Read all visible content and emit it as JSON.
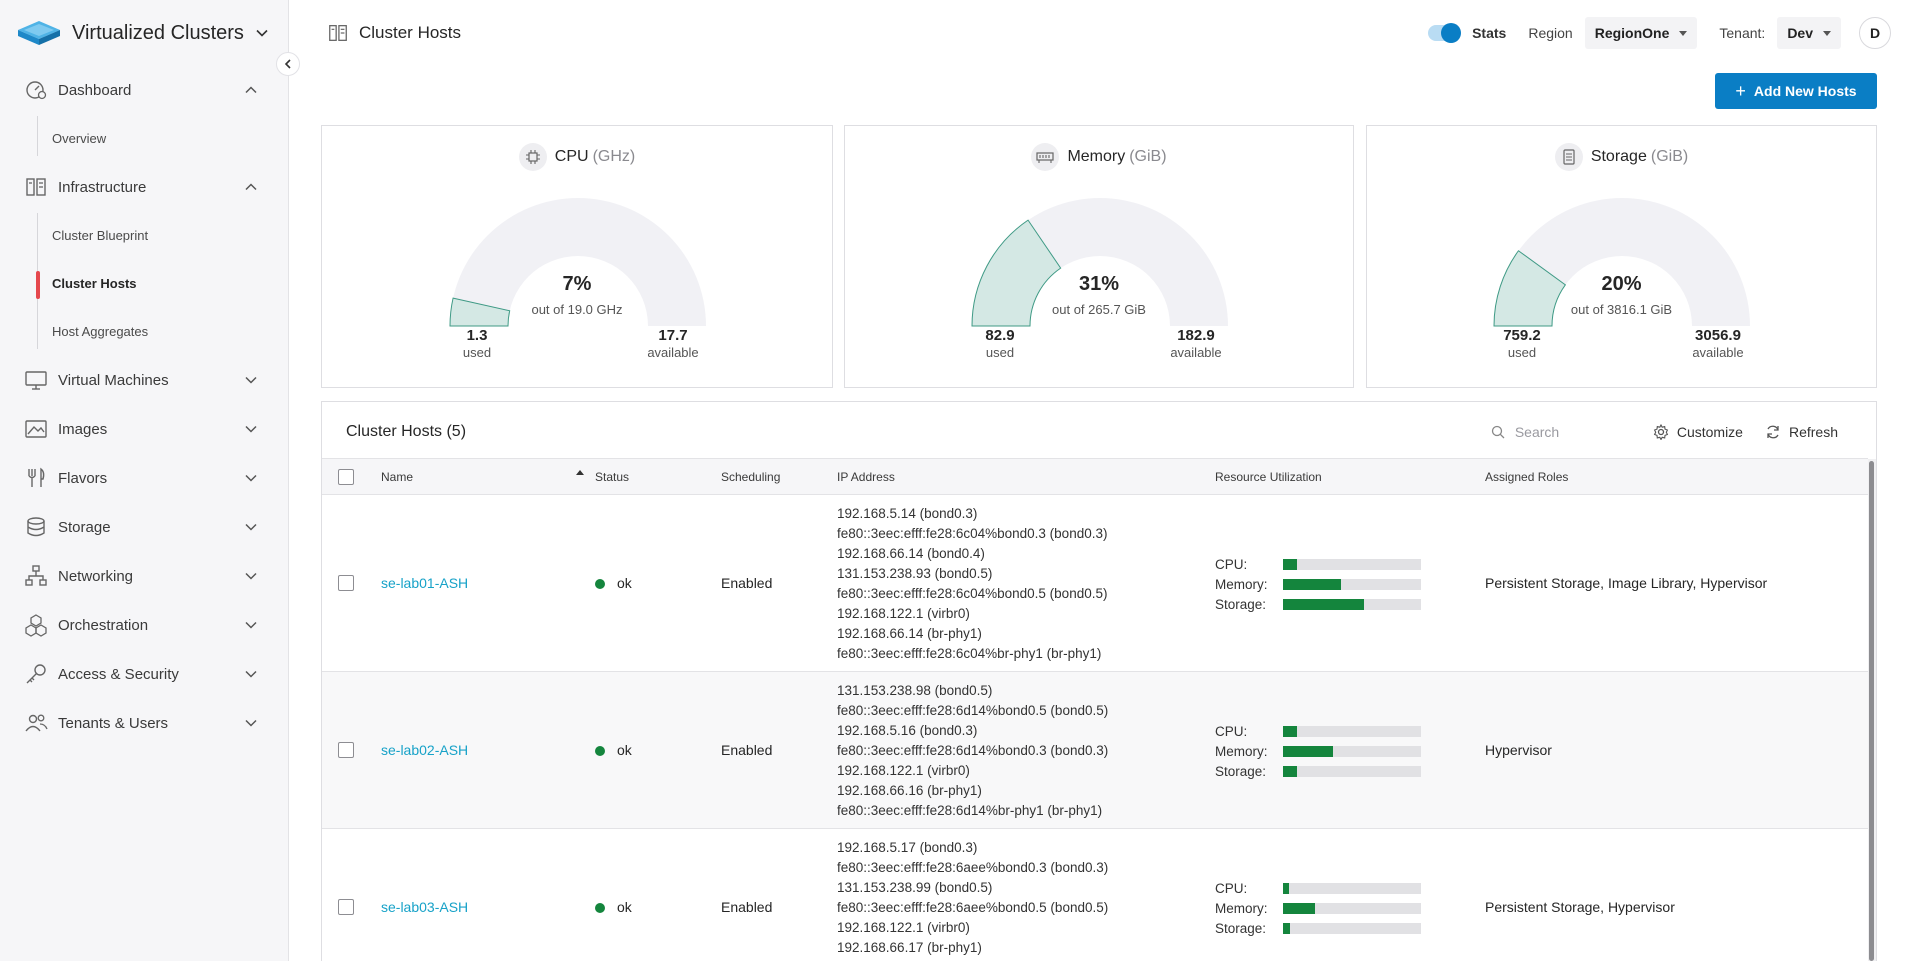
{
  "app": {
    "title": "Virtualized Clusters"
  },
  "sidebar": {
    "dashboard": {
      "label": "Dashboard",
      "sub": [
        "Overview"
      ]
    },
    "infrastructure": {
      "label": "Infrastructure",
      "sub": [
        "Cluster Blueprint",
        "Cluster Hosts",
        "Host Aggregates"
      ],
      "active": "Cluster Hosts"
    },
    "items": [
      {
        "label": "Virtual Machines",
        "icon": "monitor-icon"
      },
      {
        "label": "Images",
        "icon": "image-icon"
      },
      {
        "label": "Flavors",
        "icon": "utensils-icon"
      },
      {
        "label": "Storage",
        "icon": "database-icon"
      },
      {
        "label": "Networking",
        "icon": "network-icon"
      },
      {
        "label": "Orchestration",
        "icon": "cubes-icon"
      },
      {
        "label": "Access & Security",
        "icon": "key-icon"
      },
      {
        "label": "Tenants & Users",
        "icon": "users-icon"
      }
    ]
  },
  "header": {
    "page_title": "Cluster Hosts",
    "stats_label": "Stats",
    "stats_on": true,
    "region_label": "Region",
    "region_value": "RegionOne",
    "tenant_label": "Tenant:",
    "tenant_value": "Dev",
    "avatar_initial": "D"
  },
  "actions": {
    "add_hosts": "Add New Hosts"
  },
  "gauges": [
    {
      "name": "CPU",
      "unit": "(GHz)",
      "percent": "7%",
      "fraction": 0.07,
      "subtitle": "out of 19.0 GHz",
      "used": "1.3",
      "used_label": "used",
      "available": "17.7",
      "available_label": "available",
      "icon": "cpu-chip-icon"
    },
    {
      "name": "Memory",
      "unit": "(GiB)",
      "percent": "31%",
      "fraction": 0.31,
      "subtitle": "out of 265.7 GiB",
      "used": "82.9",
      "used_label": "used",
      "available": "182.9",
      "available_label": "available",
      "icon": "memory-icon"
    },
    {
      "name": "Storage",
      "unit": "(GiB)",
      "percent": "20%",
      "fraction": 0.2,
      "subtitle": "out of 3816.1 GiB",
      "used": "759.2",
      "used_label": "used",
      "available": "3056.9",
      "available_label": "available",
      "icon": "storage-icon"
    }
  ],
  "table": {
    "title": "Cluster Hosts (5)",
    "search_placeholder": "Search",
    "customize_label": "Customize",
    "refresh_label": "Refresh",
    "columns": [
      "Name",
      "Status",
      "Scheduling",
      "IP Address",
      "Resource Utilization",
      "Assigned Roles"
    ],
    "util_labels": [
      "CPU:",
      "Memory:",
      "Storage:"
    ],
    "rows": [
      {
        "name": "se-lab01-ASH",
        "status": "ok",
        "scheduling": "Enabled",
        "ips": [
          "192.168.5.14 (bond0.3)",
          "fe80::3eec:efff:fe28:6c04%bond0.3 (bond0.3)",
          "192.168.66.14 (bond0.4)",
          "131.153.238.93 (bond0.5)",
          "fe80::3eec:efff:fe28:6c04%bond0.5 (bond0.5)",
          "192.168.122.1 (virbr0)",
          "192.168.66.14 (br-phy1)",
          "fe80::3eec:efff:fe28:6c04%br-phy1 (br-phy1)"
        ],
        "util": {
          "cpu": 0.1,
          "memory": 0.42,
          "storage": 0.59
        },
        "roles": "Persistent Storage, Image Library, Hypervisor"
      },
      {
        "name": "se-lab02-ASH",
        "status": "ok",
        "scheduling": "Enabled",
        "ips": [
          "131.153.238.98 (bond0.5)",
          "fe80::3eec:efff:fe28:6d14%bond0.5 (bond0.5)",
          "192.168.5.16 (bond0.3)",
          "fe80::3eec:efff:fe28:6d14%bond0.3 (bond0.3)",
          "192.168.122.1 (virbr0)",
          "192.168.66.16 (br-phy1)",
          "fe80::3eec:efff:fe28:6d14%br-phy1 (br-phy1)"
        ],
        "util": {
          "cpu": 0.1,
          "memory": 0.36,
          "storage": 0.1
        },
        "roles": "Hypervisor"
      },
      {
        "name": "se-lab03-ASH",
        "status": "ok",
        "scheduling": "Enabled",
        "ips": [
          "192.168.5.17 (bond0.3)",
          "fe80::3eec:efff:fe28:6aee%bond0.3 (bond0.3)",
          "131.153.238.99 (bond0.5)",
          "fe80::3eec:efff:fe28:6aee%bond0.5 (bond0.5)",
          "192.168.122.1 (virbr0)",
          "192.168.66.17 (br-phy1)"
        ],
        "util": {
          "cpu": 0.04,
          "memory": 0.23,
          "storage": 0.05
        },
        "roles": "Persistent Storage, Hypervisor"
      }
    ]
  },
  "colors": {
    "accent": "#0a7ec5",
    "link": "#17a2c8",
    "ok": "#14853d",
    "active_marker": "#e5484d",
    "gauge_fill": "#d4e8e4",
    "gauge_stroke": "#3f9a85",
    "gauge_track": "#f1f1f5"
  }
}
